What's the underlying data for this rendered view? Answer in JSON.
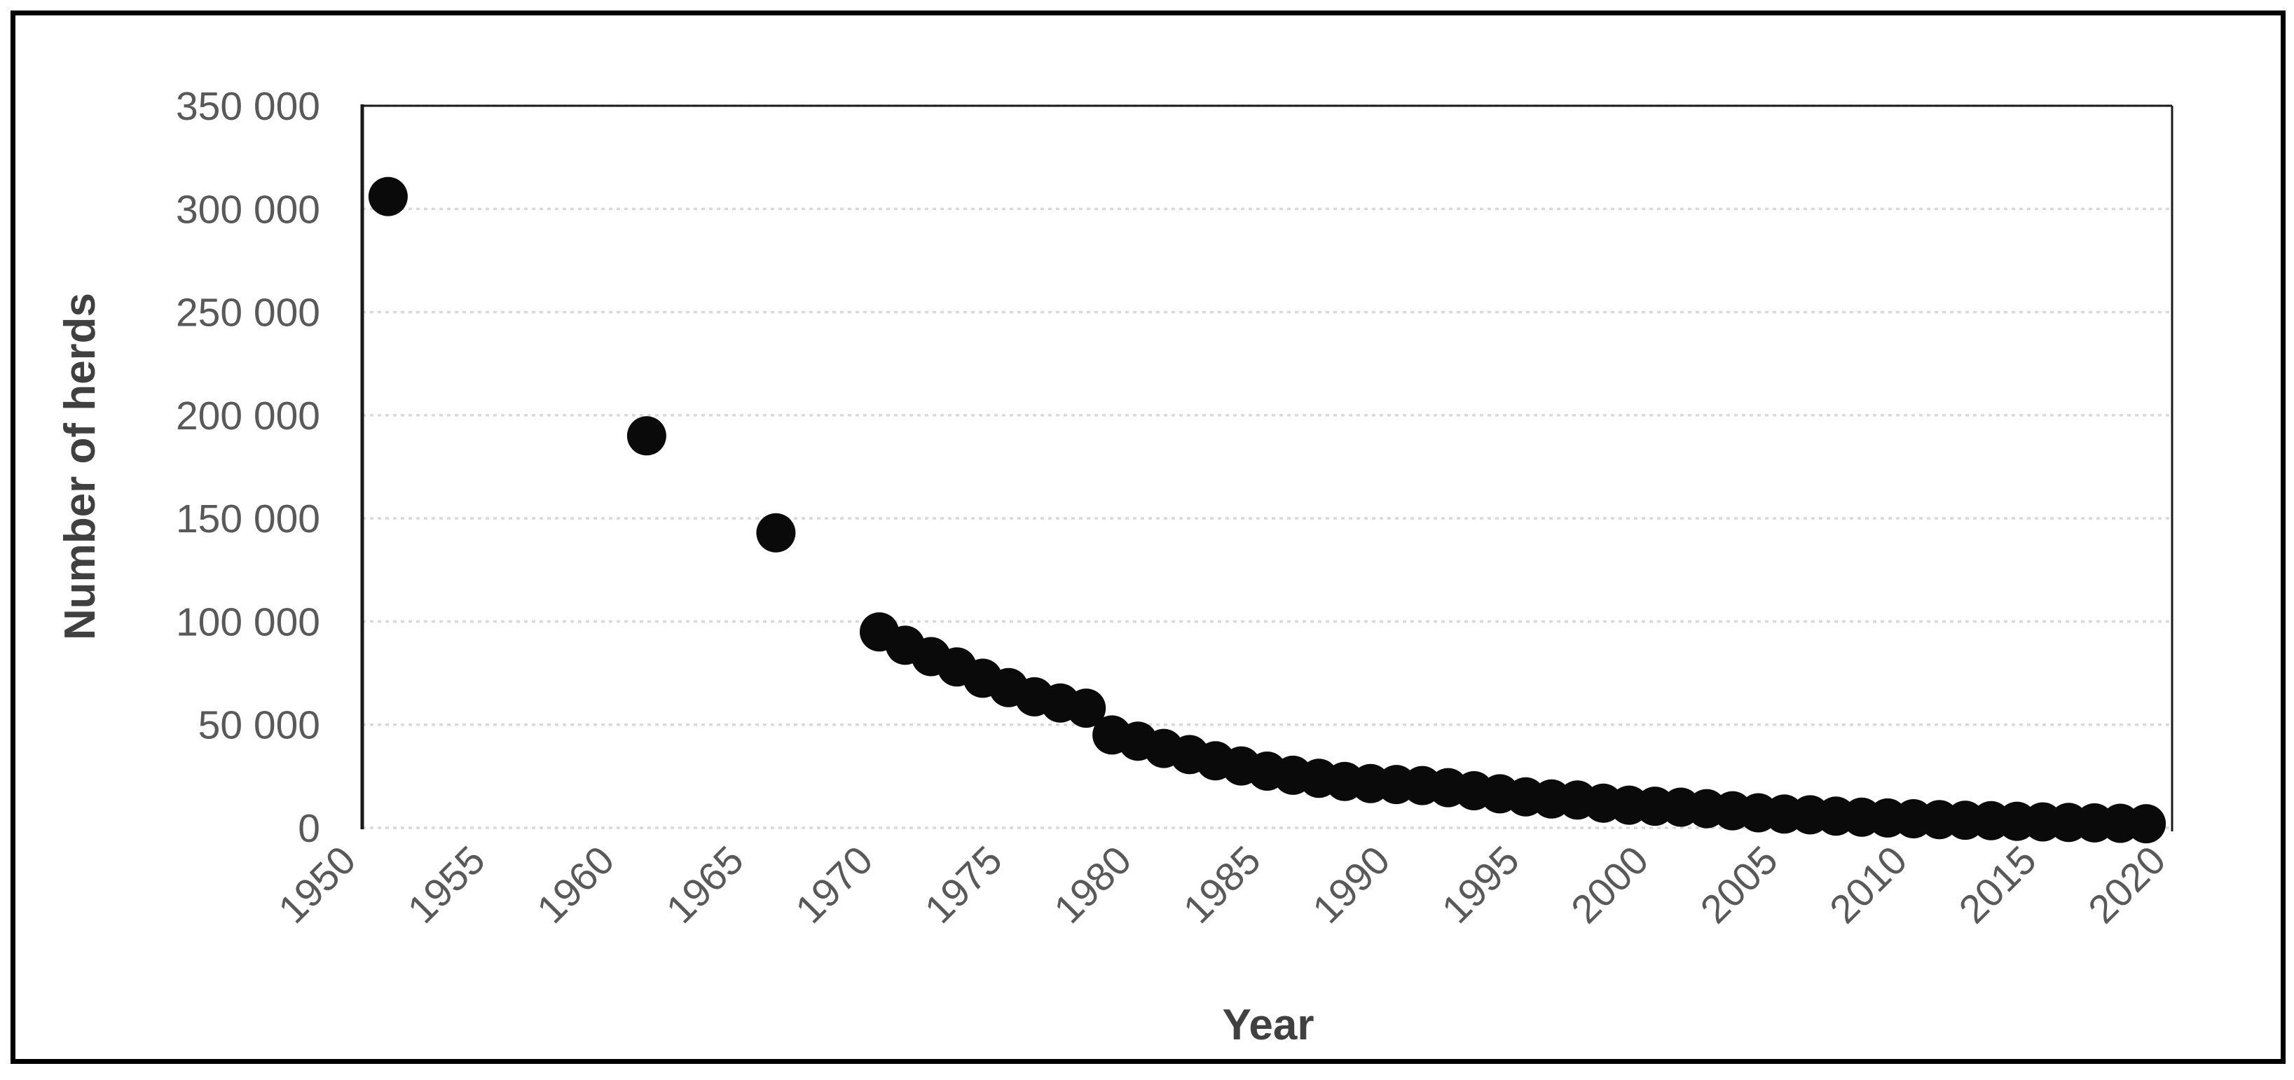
{
  "figure": {
    "kind": "scatter-chart-figure",
    "background": "#ffffff"
  },
  "chart_data": {
    "type": "scatter",
    "title": "",
    "xlabel": "Year",
    "ylabel": "Number of herds",
    "xlim": [
      1950,
      2020
    ],
    "ylim": [
      0,
      350000
    ],
    "x_ticks": [
      1950,
      1955,
      1960,
      1965,
      1970,
      1975,
      1980,
      1985,
      1990,
      1995,
      2000,
      2005,
      2010,
      2015,
      2020
    ],
    "x_tick_labels": [
      "1950",
      "1955",
      "1960",
      "1965",
      "1970",
      "1975",
      "1980",
      "1985",
      "1990",
      "1995",
      "2000",
      "2005",
      "2010",
      "2015",
      "2020"
    ],
    "x_tick_rotation_deg": 45,
    "y_ticks": [
      0,
      50000,
      100000,
      150000,
      200000,
      250000,
      300000,
      350000
    ],
    "y_tick_labels": [
      "0",
      "50 000",
      "100 000",
      "150 000",
      "200 000",
      "250 000",
      "300 000",
      "350 000"
    ],
    "grid": "horizontal-dotted",
    "legend": "none",
    "marker": {
      "shape": "circle",
      "color": "#0a0a0a"
    },
    "series": [
      {
        "name": "Number of herds",
        "points": [
          [
            1951,
            306000
          ],
          [
            1961,
            190000
          ],
          [
            1966,
            143000
          ],
          [
            1970,
            95000
          ],
          [
            1971,
            88500
          ],
          [
            1972,
            83000
          ],
          [
            1973,
            78000
          ],
          [
            1974,
            72500
          ],
          [
            1975,
            68000
          ],
          [
            1976,
            63500
          ],
          [
            1977,
            60500
          ],
          [
            1978,
            58000
          ],
          [
            1979,
            45000
          ],
          [
            1980,
            42000
          ],
          [
            1981,
            38500
          ],
          [
            1982,
            35500
          ],
          [
            1983,
            32500
          ],
          [
            1984,
            30000
          ],
          [
            1985,
            27500
          ],
          [
            1986,
            25500
          ],
          [
            1987,
            24000
          ],
          [
            1988,
            22500
          ],
          [
            1989,
            21500
          ],
          [
            1990,
            21000
          ],
          [
            1991,
            20500
          ],
          [
            1992,
            19500
          ],
          [
            1993,
            18000
          ],
          [
            1994,
            16500
          ],
          [
            1995,
            15000
          ],
          [
            1996,
            14000
          ],
          [
            1997,
            13500
          ],
          [
            1998,
            12000
          ],
          [
            1999,
            11000
          ],
          [
            2000,
            10500
          ],
          [
            2001,
            10000
          ],
          [
            2002,
            9300
          ],
          [
            2003,
            8300
          ],
          [
            2004,
            7300
          ],
          [
            2005,
            6700
          ],
          [
            2006,
            6300
          ],
          [
            2007,
            5700
          ],
          [
            2008,
            5200
          ],
          [
            2009,
            4800
          ],
          [
            2010,
            4400
          ],
          [
            2011,
            4000
          ],
          [
            2012,
            3700
          ],
          [
            2013,
            3500
          ],
          [
            2014,
            3200
          ],
          [
            2015,
            2900
          ],
          [
            2016,
            2600
          ],
          [
            2017,
            2400
          ],
          [
            2018,
            2200
          ],
          [
            2019,
            2000
          ]
        ]
      }
    ]
  },
  "colors": {
    "marker": "#0a0a0a",
    "tick_label": "#595959",
    "axis_title": "#404040",
    "gridline": "#d9d9d9",
    "plot_border": "#1a1a1a",
    "frame": "#000000",
    "background": "#ffffff"
  }
}
